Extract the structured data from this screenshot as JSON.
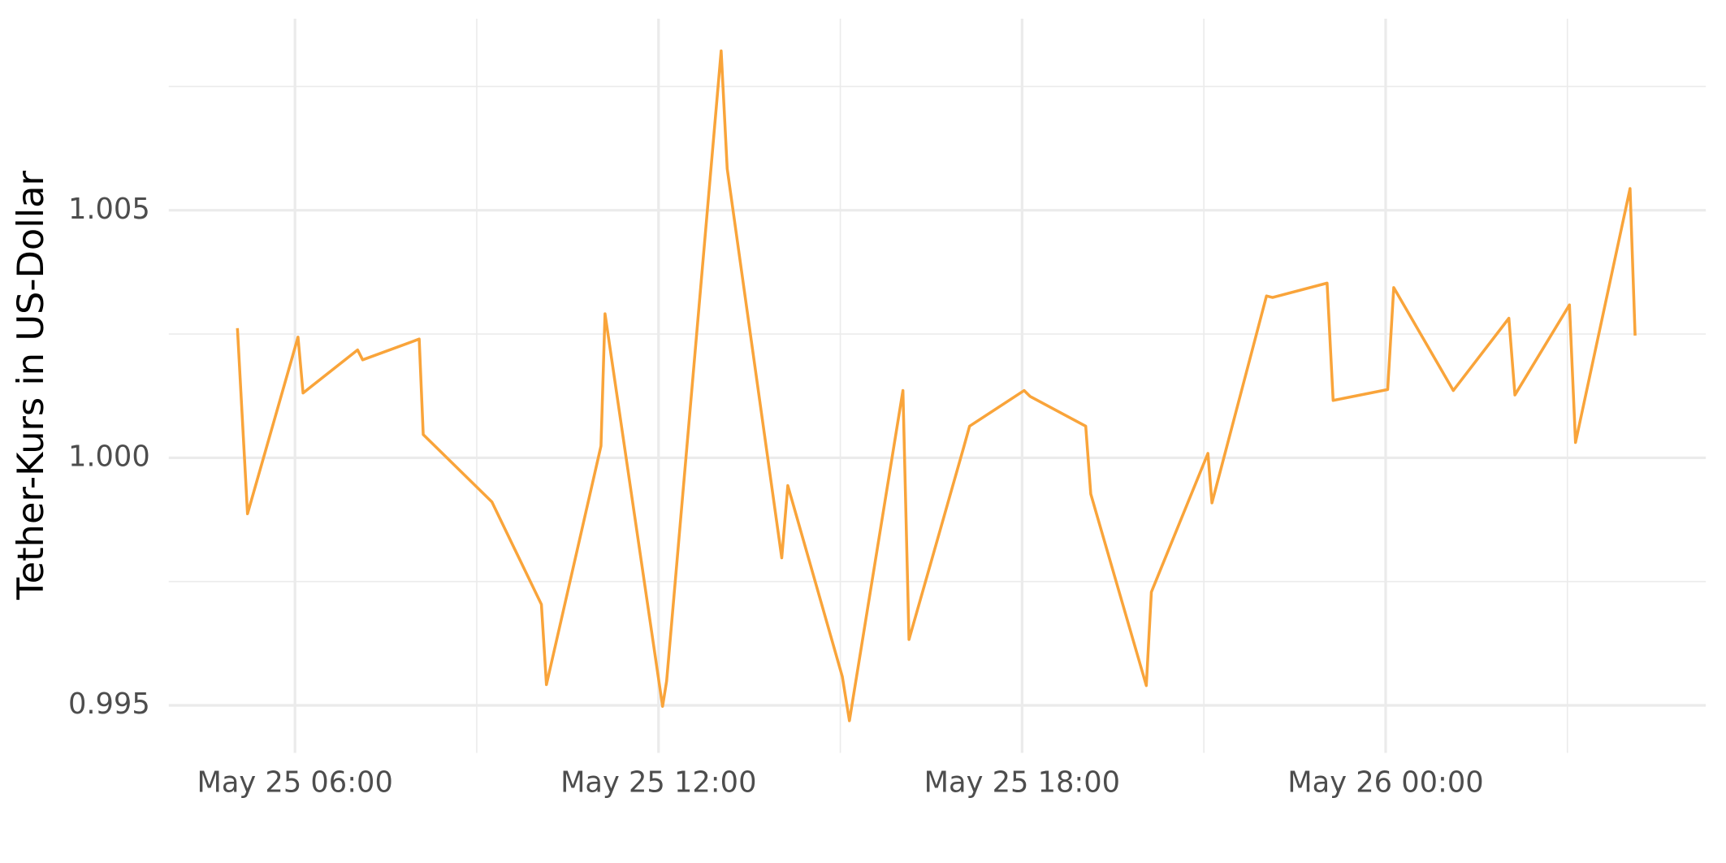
{
  "chart_data": {
    "type": "line",
    "y_label": "Tether-Kurs in US-Dollar",
    "x": [
      "May 25 05:03",
      "May 25 05:13",
      "May 25 06:03",
      "May 25 06:08",
      "May 25 07:02",
      "May 25 07:07",
      "May 25 08:03",
      "May 25 08:07",
      "May 25 09:15",
      "May 25 10:04",
      "May 25 10:09",
      "May 25 11:03",
      "May 25 11:07",
      "May 25 12:04",
      "May 25 12:08",
      "May 25 13:02",
      "May 25 13:08",
      "May 25 14:02",
      "May 25 14:08",
      "May 25 15:02",
      "May 25 15:09",
      "May 25 16:02",
      "May 25 16:08",
      "May 25 17:02",
      "May 25 17:08",
      "May 25 18:02",
      "May 25 18:08",
      "May 25 19:03",
      "May 25 19:08",
      "May 25 20:03",
      "May 25 20:08",
      "May 25 21:04",
      "May 25 21:08",
      "May 25 22:02",
      "May 25 22:08",
      "May 25 23:02",
      "May 25 23:08",
      "May 26 00:02",
      "May 26 00:08",
      "May 26 01:07",
      "May 26 02:02",
      "May 26 02:08",
      "May 26 03:02",
      "May 26 03:08",
      "May 26 04:02",
      "May 26 04:07"
    ],
    "series": [
      {
        "name": "Tether",
        "color": "#f9a43a",
        "values": [
          1.00262,
          0.99887,
          1.00244,
          1.00131,
          1.00218,
          1.00198,
          1.0024,
          1.00047,
          0.99911,
          0.99704,
          0.99542,
          1.00024,
          1.00291,
          0.99498,
          0.99549,
          1.00822,
          1.00584,
          0.99798,
          0.99944,
          0.99558,
          0.99469,
          1.00136,
          0.99633,
          1.0002,
          1.00064,
          1.00136,
          1.00124,
          1.00064,
          0.99927,
          0.9954,
          0.99729,
          1.00009,
          0.99909,
          1.00327,
          1.00324,
          1.00353,
          1.00116,
          1.00138,
          1.00344,
          1.00136,
          1.00282,
          1.00127,
          1.00309,
          1.00031,
          1.00544,
          1.00247
        ]
      }
    ],
    "xlim": [
      "May 25 03:55",
      "May 26 05:17"
    ],
    "xticks": [
      "May 25 06:00",
      "May 25 12:00",
      "May 25 18:00",
      "May 26 00:00"
    ],
    "xminor": [
      "May 25 09:00",
      "May 25 15:00",
      "May 25 21:00",
      "May 26 03:00"
    ],
    "ylim": [
      0.99404,
      1.00887
    ],
    "yticks": [
      0.995,
      {
        "value": 1,
        "label": "1.000"
      },
      1.005
    ],
    "yminor": [
      0.9975,
      1.0025,
      1.0075
    ],
    "grid": true
  }
}
